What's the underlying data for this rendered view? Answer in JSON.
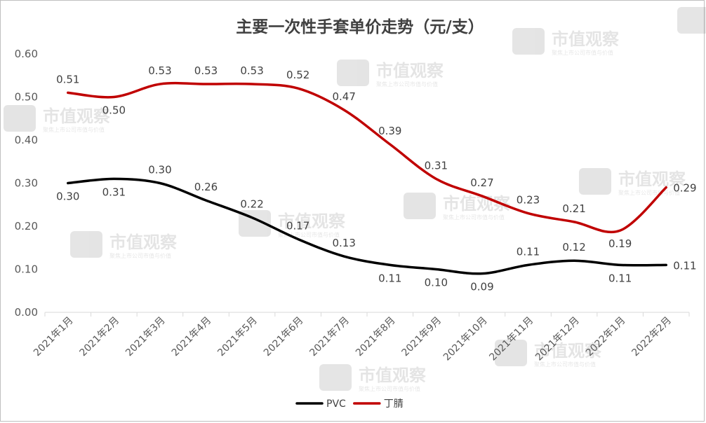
{
  "chart_data": {
    "type": "line",
    "title": "主要一次性手套单价走势（元/支）",
    "categories": [
      "2021年1月",
      "2021年2月",
      "2021年3月",
      "2021年4月",
      "2021年5月",
      "2021年6月",
      "2021年7月",
      "2021年8月",
      "2021年9月",
      "2021年10月",
      "2021年11月",
      "2021年12月",
      "2022年1月",
      "2022年2月"
    ],
    "series": [
      {
        "name": "PVC",
        "color": "#000000",
        "values": [
          0.3,
          0.31,
          0.3,
          0.26,
          0.22,
          0.17,
          0.13,
          0.11,
          0.1,
          0.09,
          0.11,
          0.12,
          0.11,
          0.11
        ],
        "labels": [
          "0.30",
          "0.31",
          "0.30",
          "0.26",
          "0.22",
          "0.17",
          "0.13",
          "0.11",
          "0.10",
          "0.09",
          "0.11",
          "0.12",
          "0.11",
          "0.11"
        ]
      },
      {
        "name": "丁腈",
        "color": "#c00000",
        "values": [
          0.51,
          0.5,
          0.53,
          0.53,
          0.53,
          0.52,
          0.47,
          0.39,
          0.31,
          0.27,
          0.23,
          0.21,
          0.19,
          0.29
        ],
        "labels": [
          "0.51",
          "0.50",
          "0.53",
          "0.53",
          "0.53",
          "0.52",
          "0.47",
          "0.39",
          "0.31",
          "0.27",
          "0.23",
          "0.21",
          "0.19",
          "0.29"
        ]
      }
    ],
    "yticks": [
      "0.00",
      "0.10",
      "0.20",
      "0.30",
      "0.40",
      "0.50",
      "0.60"
    ],
    "ylim": [
      0,
      0.6
    ],
    "grid": false,
    "legend": "bottom"
  },
  "watermark": {
    "brand": "市值观察",
    "tagline": "聚焦上市公司市值与价值"
  }
}
